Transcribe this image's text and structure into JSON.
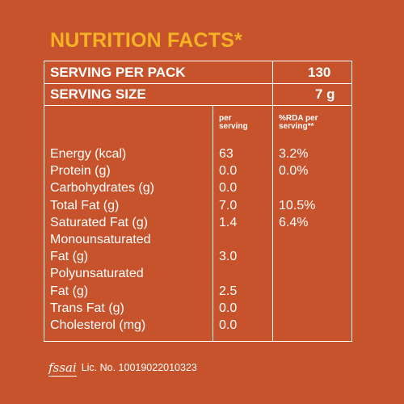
{
  "title": "NUTRITION FACTS*",
  "serving_per_pack": {
    "label": "SERVING PER PACK",
    "value": "130"
  },
  "serving_size": {
    "label": "SERVING SIZE",
    "value": "7 g"
  },
  "columns": {
    "per_serving": "per\nserving",
    "rda": "%RDA per\nserving**"
  },
  "rows": [
    {
      "name": "Energy (kcal)",
      "value": "63",
      "rda": "3.2%"
    },
    {
      "name": "Protein (g)",
      "value": "0.0",
      "rda": "0.0%"
    },
    {
      "name": "Carbohydrates (g)",
      "value": "0.0",
      "rda": ""
    },
    {
      "name": "Total Fat (g)",
      "value": "7.0",
      "rda": "10.5%"
    },
    {
      "name": "Saturated Fat (g)",
      "value": "1.4",
      "rda": "6.4%"
    },
    {
      "name": "Monounsaturated",
      "value": "",
      "rda": ""
    },
    {
      "name": "Fat (g)",
      "value": "3.0",
      "rda": ""
    },
    {
      "name": "Polyunsaturated",
      "value": "",
      "rda": ""
    },
    {
      "name": "Fat (g)",
      "value": "2.5",
      "rda": ""
    },
    {
      "name": "Trans Fat (g)",
      "value": "0.0",
      "rda": ""
    },
    {
      "name": "Cholesterol (mg)",
      "value": "0.0",
      "rda": ""
    }
  ],
  "footer": {
    "logo": "fssai",
    "license": "Lic. No. 10019022010323"
  },
  "colors": {
    "background": "#c6532b",
    "title": "#f5b324",
    "text": "#ffffff"
  }
}
